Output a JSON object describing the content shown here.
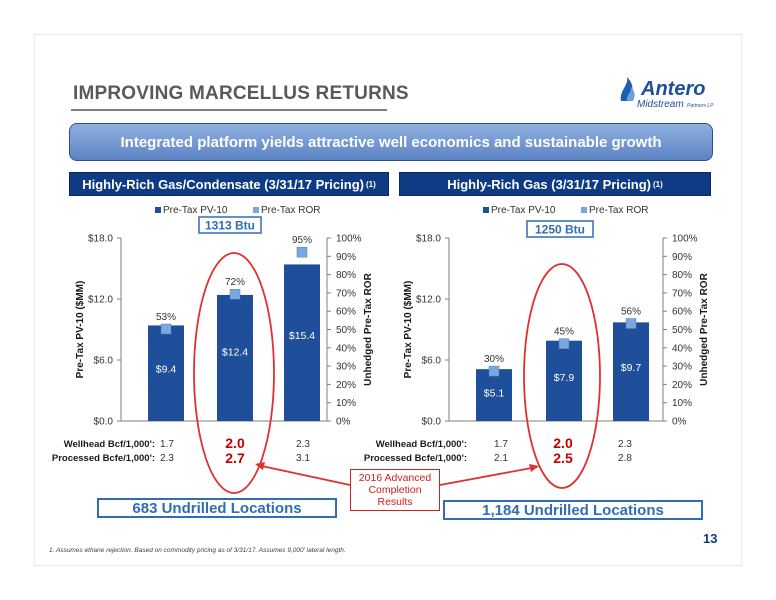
{
  "title": "IMPROVING MARCELLUS RETURNS",
  "logo": {
    "brand": "Antero",
    "sub": "Midstream",
    "suffix": "Partners LP"
  },
  "banner": "Integrated platform yields attractive well economics and sustainable growth",
  "legend": {
    "pv10": "Pre-Tax PV-10",
    "ror": "Pre-Tax ROR"
  },
  "left_axis_title": "Pre-Tax PV-10 ($MM)",
  "right_axis_title": "Unhedged Pre-Tax ROR",
  "row_labels": {
    "wellhead": "Wellhead Bcf/1,000':",
    "processed": "Processed Bcfe/1,000':"
  },
  "panels": [
    {
      "header": "Highly-Rich Gas/Condensate (3/31/17 Pricing)",
      "header_note": "(1)",
      "btu": "1313 Btu",
      "wellhead": [
        "1.7",
        "2.0",
        "2.3"
      ],
      "processed": [
        "2.3",
        "2.7",
        "3.1"
      ],
      "locations": "683 Undrilled Locations"
    },
    {
      "header": "Highly-Rich Gas (3/31/17 Pricing)",
      "header_note": "(1)",
      "btu": "1250 Btu",
      "wellhead": [
        "1.7",
        "2.0",
        "2.3"
      ],
      "processed": [
        "2.1",
        "2.5",
        "2.8"
      ],
      "locations": "1,184 Undrilled Locations"
    }
  ],
  "callout": "2016 Advanced Completion Results",
  "page_number": "13",
  "footnote": "1.  Assumes ethane rejection. Based on commodity pricing as of 3/31/17. Assumes 9,000' lateral length.",
  "colors": {
    "navy": "#0f3b84",
    "bar": "#1f4e9a",
    "accent_red": "#d02020",
    "loc_border": "#2f6db5"
  },
  "chart_data": [
    {
      "type": "bar",
      "title": "Highly-Rich Gas/Condensate (3/31/17 Pricing)",
      "categories": [
        "1.7",
        "2.0",
        "2.3"
      ],
      "series": [
        {
          "name": "Pre-Tax PV-10",
          "values": [
            9.4,
            12.4,
            15.4
          ],
          "labels": [
            "$9.4",
            "$12.4",
            "$15.4"
          ],
          "axis": "left"
        },
        {
          "name": "Pre-Tax ROR",
          "values": [
            53,
            72,
            95
          ],
          "labels": [
            "53%",
            "72%",
            "95%"
          ],
          "axis": "right"
        }
      ],
      "y_left": {
        "ticks": [
          "$0.0",
          "$6.0",
          "$12.0",
          "$18.0"
        ],
        "range": [
          0,
          18
        ]
      },
      "y_right": {
        "ticks": [
          "0%",
          "10%",
          "20%",
          "30%",
          "40%",
          "50%",
          "60%",
          "70%",
          "80%",
          "90%",
          "100%"
        ],
        "range": [
          0,
          100
        ]
      }
    },
    {
      "type": "bar",
      "title": "Highly-Rich Gas (3/31/17 Pricing)",
      "categories": [
        "1.7",
        "2.0",
        "2.3"
      ],
      "series": [
        {
          "name": "Pre-Tax PV-10",
          "values": [
            5.1,
            7.9,
            9.7
          ],
          "labels": [
            "$5.1",
            "$7.9",
            "$9.7"
          ],
          "axis": "left"
        },
        {
          "name": "Pre-Tax ROR",
          "values": [
            30,
            45,
            56
          ],
          "labels": [
            "30%",
            "45%",
            "56%"
          ],
          "axis": "right"
        }
      ],
      "y_left": {
        "ticks": [
          "$0.0",
          "$6.0",
          "$12.0",
          "$18.0"
        ],
        "range": [
          0,
          18
        ]
      },
      "y_right": {
        "ticks": [
          "0%",
          "10%",
          "20%",
          "30%",
          "40%",
          "50%",
          "60%",
          "70%",
          "80%",
          "90%",
          "100%"
        ],
        "range": [
          0,
          100
        ]
      }
    }
  ]
}
